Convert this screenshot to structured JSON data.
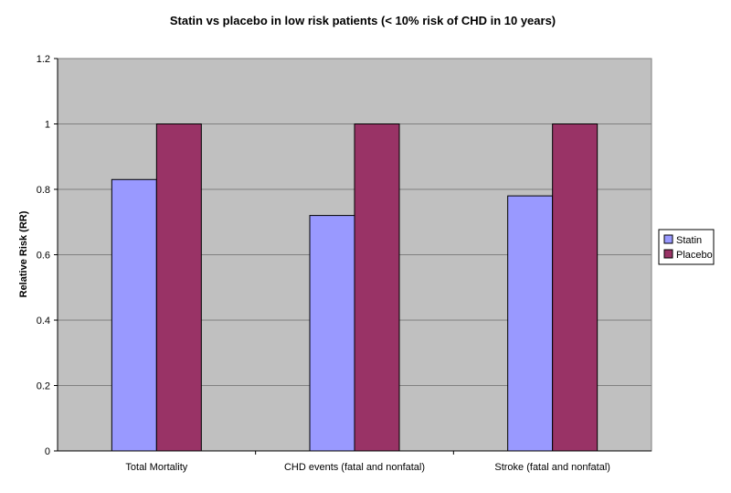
{
  "chart_data": {
    "type": "bar",
    "title": "Statin vs placebo in low risk patients  (< 10% risk of CHD in 10 years)",
    "xlabel": "",
    "ylabel": "Relative Risk (RR)",
    "ylim": [
      0,
      1.2
    ],
    "yticks": [
      0,
      0.2,
      0.4,
      0.6,
      0.8,
      1,
      1.2
    ],
    "ytick_labels": [
      "0",
      "0.2",
      "0.4",
      "0.6",
      "0.8",
      "1",
      "1.2"
    ],
    "categories": [
      "Total Mortality",
      "CHD events (fatal and nonfatal)",
      "Stroke (fatal and nonfatal)"
    ],
    "series": [
      {
        "name": "Statin",
        "values": [
          0.83,
          0.72,
          0.78
        ],
        "color": "#9999FF"
      },
      {
        "name": "Placebo",
        "values": [
          1.0,
          1.0,
          1.0
        ],
        "color": "#993366"
      }
    ],
    "grid": true,
    "plot_background": "#C0C0C0",
    "legend_position": "right"
  }
}
